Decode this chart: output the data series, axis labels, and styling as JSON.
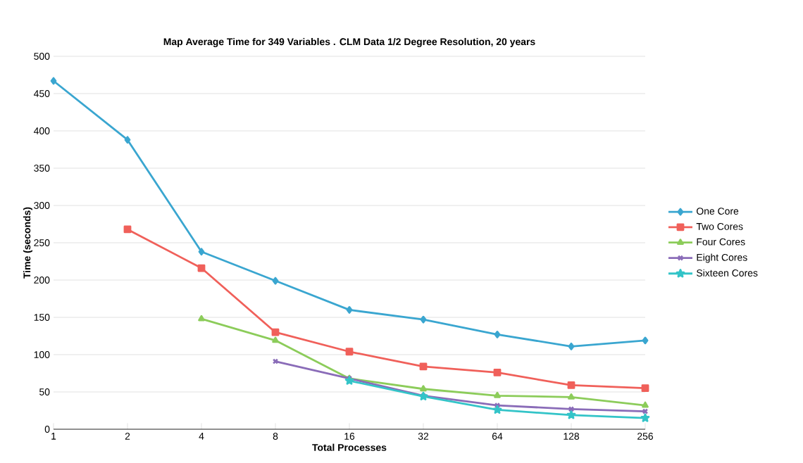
{
  "chart_data": {
    "type": "line",
    "title": "Map Average Time for 349 Variables . CLM Data 1/2 Degree Resolution, 20 years",
    "xlabel": "Total Processes",
    "ylabel": "Time (seconds)",
    "categories": [
      "1",
      "2",
      "4",
      "8",
      "16",
      "32",
      "64",
      "128",
      "256"
    ],
    "ylim": [
      0,
      500
    ],
    "yticks": [
      0,
      50,
      100,
      150,
      200,
      250,
      300,
      350,
      400,
      450,
      500
    ],
    "grid": "y",
    "legend": "right",
    "series": [
      {
        "name": "One Core",
        "color": "#3aa6d0",
        "marker": "diamond",
        "values": [
          467,
          388,
          238,
          199,
          160,
          147,
          127,
          111,
          119
        ]
      },
      {
        "name": "Two Cores",
        "color": "#f0605a",
        "marker": "square",
        "values": [
          null,
          268,
          216,
          130,
          104,
          84,
          76,
          59,
          55
        ]
      },
      {
        "name": "Four Cores",
        "color": "#8ccc5a",
        "marker": "triangle",
        "values": [
          null,
          null,
          148,
          119,
          68,
          54,
          45,
          43,
          32
        ]
      },
      {
        "name": "Eight Cores",
        "color": "#8a6cb8",
        "marker": "cross",
        "values": [
          null,
          null,
          null,
          91,
          68,
          45,
          32,
          27,
          24
        ]
      },
      {
        "name": "Sixteen Cores",
        "color": "#33c4c8",
        "marker": "star",
        "values": [
          null,
          null,
          null,
          null,
          65,
          44,
          26,
          19,
          15
        ]
      }
    ]
  }
}
